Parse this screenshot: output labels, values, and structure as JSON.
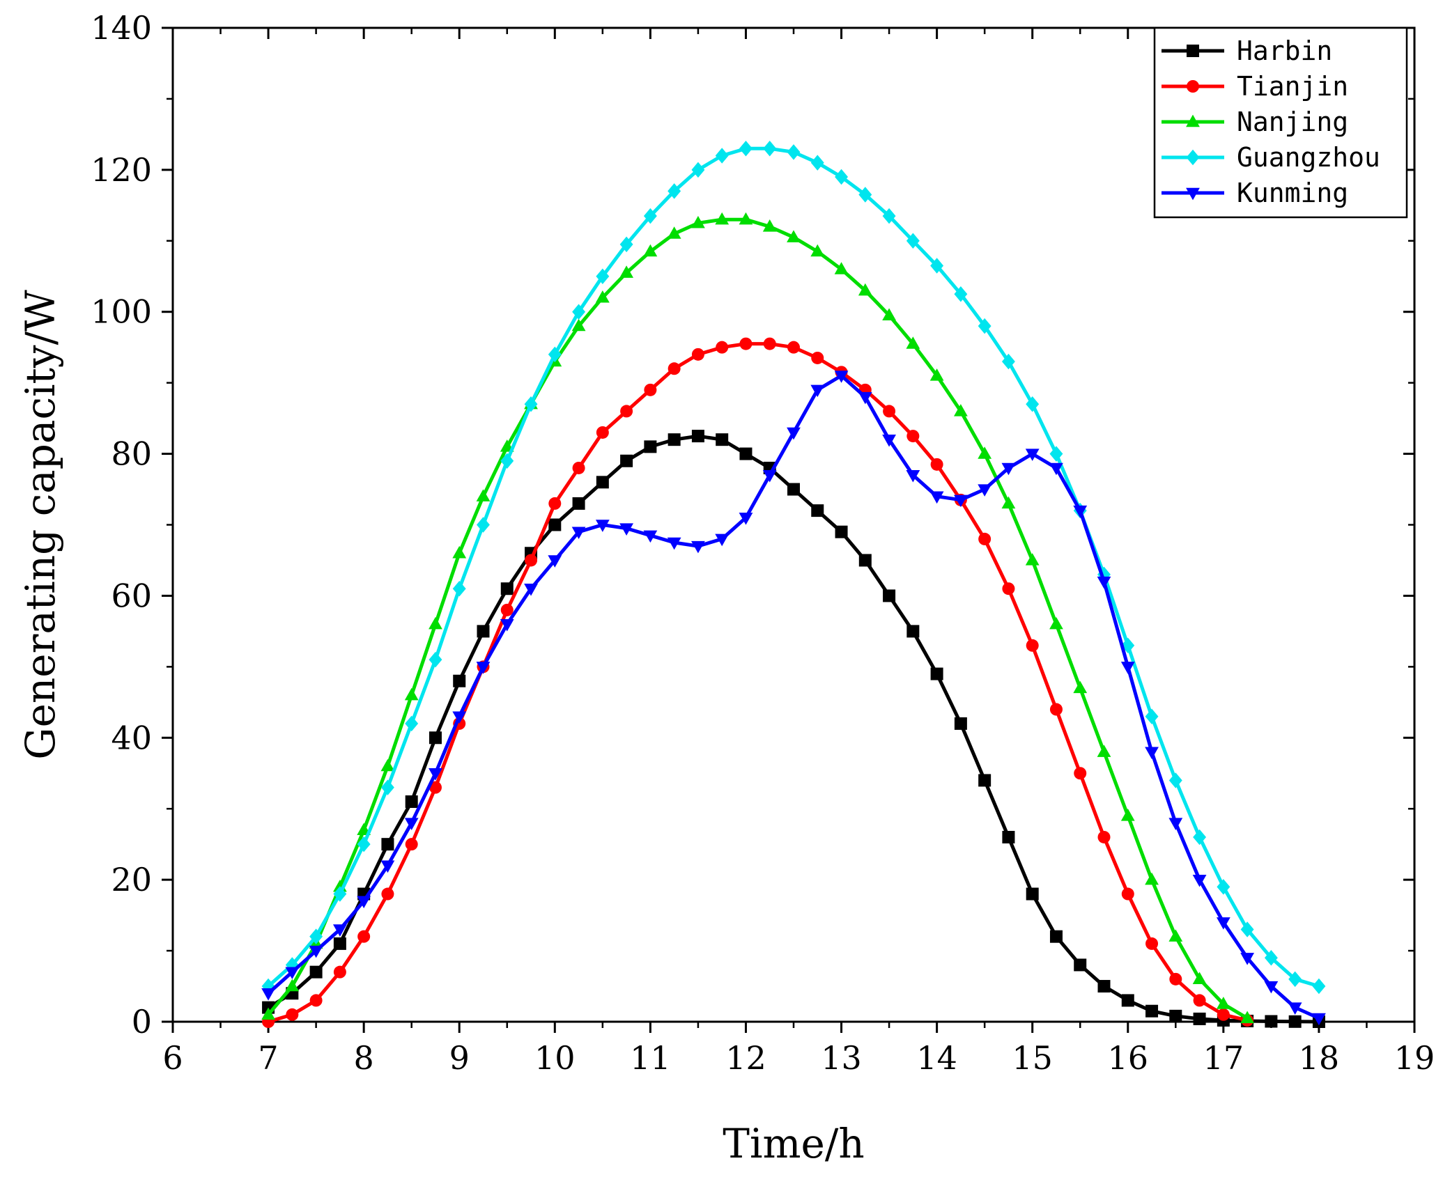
{
  "chart_data": {
    "type": "line",
    "title": "",
    "xlabel": "Time/h",
    "ylabel": "Generating capacity/W",
    "xlim": [
      6,
      19
    ],
    "ylim": [
      0,
      140
    ],
    "xticks": [
      "6",
      "7",
      "8",
      "9",
      "10",
      "11",
      "12",
      "13",
      "14",
      "15",
      "16",
      "17",
      "18",
      "19"
    ],
    "yticks": [
      "0",
      "20",
      "40",
      "60",
      "80",
      "100",
      "120",
      "140"
    ],
    "legend_position": "top-right",
    "series": [
      {
        "name": "Harbin",
        "color": "#000000",
        "marker": "square",
        "points": [
          [
            7.0,
            2
          ],
          [
            7.25,
            4
          ],
          [
            7.5,
            7
          ],
          [
            7.75,
            11
          ],
          [
            8.0,
            18
          ],
          [
            8.25,
            25
          ],
          [
            8.5,
            31
          ],
          [
            8.75,
            40
          ],
          [
            9.0,
            48
          ],
          [
            9.25,
            55
          ],
          [
            9.5,
            61
          ],
          [
            9.75,
            66
          ],
          [
            10.0,
            70
          ],
          [
            10.25,
            73
          ],
          [
            10.5,
            76
          ],
          [
            10.75,
            79
          ],
          [
            11.0,
            81
          ],
          [
            11.25,
            82
          ],
          [
            11.5,
            82.5
          ],
          [
            11.75,
            82
          ],
          [
            12.0,
            80
          ],
          [
            12.25,
            78
          ],
          [
            12.5,
            75
          ],
          [
            12.75,
            72
          ],
          [
            13.0,
            69
          ],
          [
            13.25,
            65
          ],
          [
            13.5,
            60
          ],
          [
            13.75,
            55
          ],
          [
            14.0,
            49
          ],
          [
            14.25,
            42
          ],
          [
            14.5,
            34
          ],
          [
            14.75,
            26
          ],
          [
            15.0,
            18
          ],
          [
            15.25,
            12
          ],
          [
            15.5,
            8
          ],
          [
            15.75,
            5
          ],
          [
            16.0,
            3
          ],
          [
            16.25,
            1.5
          ],
          [
            16.5,
            0.8
          ],
          [
            16.75,
            0.4
          ],
          [
            17.0,
            0.2
          ],
          [
            17.25,
            0.1
          ],
          [
            17.5,
            0.05
          ],
          [
            17.75,
            0.02
          ],
          [
            18.0,
            0
          ]
        ]
      },
      {
        "name": "Tianjin",
        "color": "#ff0000",
        "marker": "circle",
        "points": [
          [
            7.0,
            0
          ],
          [
            7.25,
            1
          ],
          [
            7.5,
            3
          ],
          [
            7.75,
            7
          ],
          [
            8.0,
            12
          ],
          [
            8.25,
            18
          ],
          [
            8.5,
            25
          ],
          [
            8.75,
            33
          ],
          [
            9.0,
            42
          ],
          [
            9.25,
            50
          ],
          [
            9.5,
            58
          ],
          [
            9.75,
            65
          ],
          [
            10.0,
            73
          ],
          [
            10.25,
            78
          ],
          [
            10.5,
            83
          ],
          [
            10.75,
            86
          ],
          [
            11.0,
            89
          ],
          [
            11.25,
            92
          ],
          [
            11.5,
            94
          ],
          [
            11.75,
            95
          ],
          [
            12.0,
            95.5
          ],
          [
            12.25,
            95.5
          ],
          [
            12.5,
            95
          ],
          [
            12.75,
            93.5
          ],
          [
            13.0,
            91.5
          ],
          [
            13.25,
            89
          ],
          [
            13.5,
            86
          ],
          [
            13.75,
            82.5
          ],
          [
            14.0,
            78.5
          ],
          [
            14.25,
            73.5
          ],
          [
            14.5,
            68
          ],
          [
            14.75,
            61
          ],
          [
            15.0,
            53
          ],
          [
            15.25,
            44
          ],
          [
            15.5,
            35
          ],
          [
            15.75,
            26
          ],
          [
            16.0,
            18
          ],
          [
            16.25,
            11
          ],
          [
            16.5,
            6
          ],
          [
            16.75,
            3
          ],
          [
            17.0,
            1
          ],
          [
            17.25,
            0.2
          ]
        ]
      },
      {
        "name": "Nanjing",
        "color": "#00dd00",
        "marker": "triangle-up",
        "points": [
          [
            7.0,
            1
          ],
          [
            7.25,
            5
          ],
          [
            7.5,
            11
          ],
          [
            7.75,
            19
          ],
          [
            8.0,
            27
          ],
          [
            8.25,
            36
          ],
          [
            8.5,
            46
          ],
          [
            8.75,
            56
          ],
          [
            9.0,
            66
          ],
          [
            9.25,
            74
          ],
          [
            9.5,
            81
          ],
          [
            9.75,
            87
          ],
          [
            10.0,
            93
          ],
          [
            10.25,
            98
          ],
          [
            10.5,
            102
          ],
          [
            10.75,
            105.5
          ],
          [
            11.0,
            108.5
          ],
          [
            11.25,
            111
          ],
          [
            11.5,
            112.5
          ],
          [
            11.75,
            113
          ],
          [
            12.0,
            113
          ],
          [
            12.25,
            112
          ],
          [
            12.5,
            110.5
          ],
          [
            12.75,
            108.5
          ],
          [
            13.0,
            106
          ],
          [
            13.25,
            103
          ],
          [
            13.5,
            99.5
          ],
          [
            13.75,
            95.5
          ],
          [
            14.0,
            91
          ],
          [
            14.25,
            86
          ],
          [
            14.5,
            80
          ],
          [
            14.75,
            73
          ],
          [
            15.0,
            65
          ],
          [
            15.25,
            56
          ],
          [
            15.5,
            47
          ],
          [
            15.75,
            38
          ],
          [
            16.0,
            29
          ],
          [
            16.25,
            20
          ],
          [
            16.5,
            12
          ],
          [
            16.75,
            6
          ],
          [
            17.0,
            2.5
          ],
          [
            17.25,
            0.5
          ]
        ]
      },
      {
        "name": "Guangzhou",
        "color": "#00e5ee",
        "marker": "diamond",
        "points": [
          [
            7.0,
            5
          ],
          [
            7.25,
            8
          ],
          [
            7.5,
            12
          ],
          [
            7.75,
            18
          ],
          [
            8.0,
            25
          ],
          [
            8.25,
            33
          ],
          [
            8.5,
            42
          ],
          [
            8.75,
            51
          ],
          [
            9.0,
            61
          ],
          [
            9.25,
            70
          ],
          [
            9.5,
            79
          ],
          [
            9.75,
            87
          ],
          [
            10.0,
            94
          ],
          [
            10.25,
            100
          ],
          [
            10.5,
            105
          ],
          [
            10.75,
            109.5
          ],
          [
            11.0,
            113.5
          ],
          [
            11.25,
            117
          ],
          [
            11.5,
            120
          ],
          [
            11.75,
            122
          ],
          [
            12.0,
            123
          ],
          [
            12.25,
            123
          ],
          [
            12.5,
            122.5
          ],
          [
            12.75,
            121
          ],
          [
            13.0,
            119
          ],
          [
            13.25,
            116.5
          ],
          [
            13.5,
            113.5
          ],
          [
            13.75,
            110
          ],
          [
            14.0,
            106.5
          ],
          [
            14.25,
            102.5
          ],
          [
            14.5,
            98
          ],
          [
            14.75,
            93
          ],
          [
            15.0,
            87
          ],
          [
            15.25,
            80
          ],
          [
            15.5,
            72
          ],
          [
            15.75,
            63
          ],
          [
            16.0,
            53
          ],
          [
            16.25,
            43
          ],
          [
            16.5,
            34
          ],
          [
            16.75,
            26
          ],
          [
            17.0,
            19
          ],
          [
            17.25,
            13
          ],
          [
            17.5,
            9
          ],
          [
            17.75,
            6
          ],
          [
            18.0,
            5
          ]
        ]
      },
      {
        "name": "Kunming",
        "color": "#0000ff",
        "marker": "triangle-down",
        "points": [
          [
            7.0,
            4
          ],
          [
            7.25,
            7
          ],
          [
            7.5,
            10
          ],
          [
            7.75,
            13
          ],
          [
            8.0,
            17
          ],
          [
            8.25,
            22
          ],
          [
            8.5,
            28
          ],
          [
            8.75,
            35
          ],
          [
            9.0,
            43
          ],
          [
            9.25,
            50
          ],
          [
            9.5,
            56
          ],
          [
            9.75,
            61
          ],
          [
            10.0,
            65
          ],
          [
            10.25,
            69
          ],
          [
            10.5,
            70
          ],
          [
            10.75,
            69.5
          ],
          [
            11.0,
            68.5
          ],
          [
            11.25,
            67.5
          ],
          [
            11.5,
            67
          ],
          [
            11.75,
            68
          ],
          [
            12.0,
            71
          ],
          [
            12.25,
            77
          ],
          [
            12.5,
            83
          ],
          [
            12.75,
            89
          ],
          [
            13.0,
            91
          ],
          [
            13.25,
            88
          ],
          [
            13.5,
            82
          ],
          [
            13.75,
            77
          ],
          [
            14.0,
            74
          ],
          [
            14.25,
            73.5
          ],
          [
            14.5,
            75
          ],
          [
            14.75,
            78
          ],
          [
            15.0,
            80
          ],
          [
            15.25,
            78
          ],
          [
            15.5,
            72
          ],
          [
            15.75,
            62
          ],
          [
            16.0,
            50
          ],
          [
            16.25,
            38
          ],
          [
            16.5,
            28
          ],
          [
            16.75,
            20
          ],
          [
            17.0,
            14
          ],
          [
            17.25,
            9
          ],
          [
            17.5,
            5
          ],
          [
            17.75,
            2
          ],
          [
            18.0,
            0.5
          ]
        ]
      }
    ]
  }
}
